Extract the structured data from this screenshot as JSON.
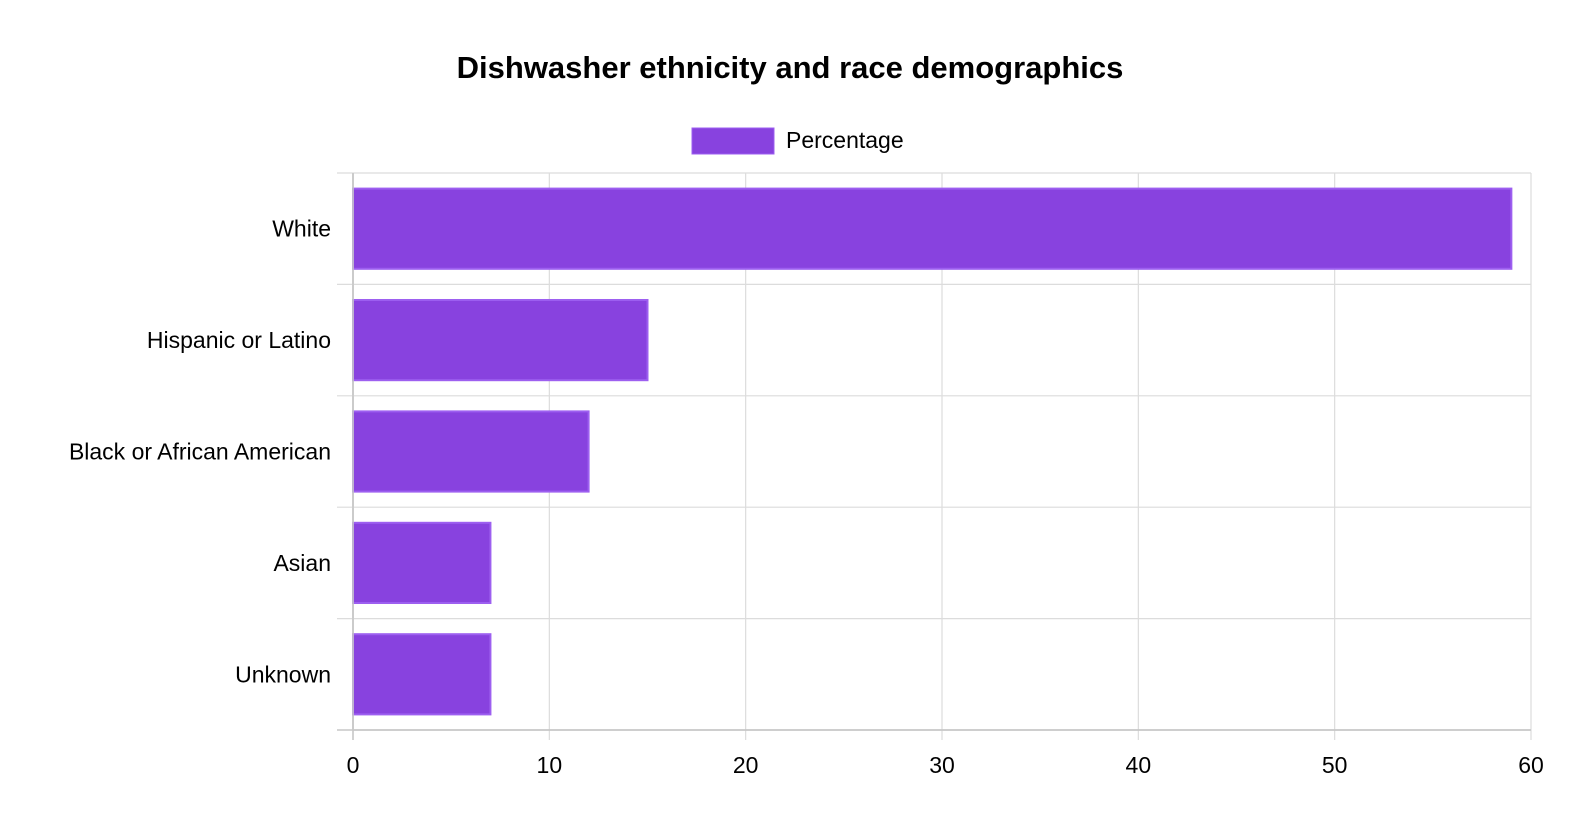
{
  "chart_data": {
    "type": "bar",
    "orientation": "horizontal",
    "title": "Dishwasher ethnicity and race demographics",
    "categories": [
      "White",
      "Hispanic or Latino",
      "Black or African American",
      "Asian",
      "Unknown"
    ],
    "series": [
      {
        "name": "Percentage",
        "values": [
          59,
          15,
          12,
          7,
          7
        ]
      }
    ],
    "xlim": [
      0,
      60
    ],
    "x_ticks": [
      0,
      10,
      20,
      30,
      40,
      50,
      60
    ],
    "xlabel": "",
    "ylabel": "",
    "grid": true,
    "legend": "top-center",
    "colors": {
      "bar_fill": "#8842df",
      "bar_border": "#9d5ff0"
    }
  }
}
